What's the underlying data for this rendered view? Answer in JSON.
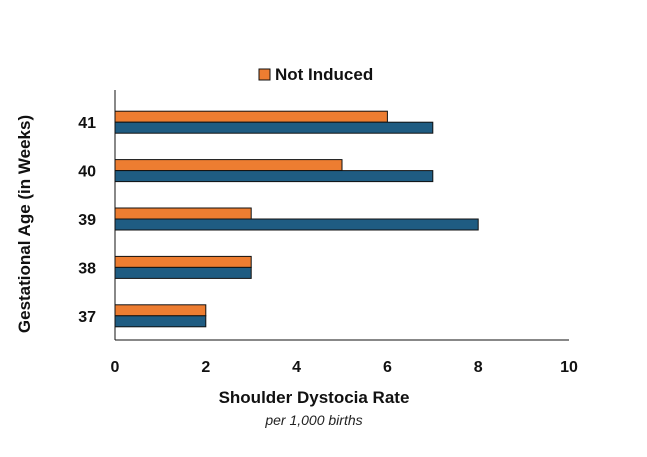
{
  "chart_data": {
    "type": "bar",
    "orientation": "horizontal",
    "categories": [
      "37",
      "38",
      "39",
      "40",
      "41"
    ],
    "series": [
      {
        "name": "Not Induced",
        "color": "#ED7D31",
        "values": [
          2,
          3,
          3,
          5,
          6
        ]
      },
      {
        "name": "",
        "color": "#1F5C82",
        "values": [
          2,
          3,
          8,
          7,
          7
        ]
      }
    ],
    "xlabel": "Shoulder Dystocia Rate",
    "xlabel_sub": "per 1,000 births",
    "ylabel": "Gestational Age (in Weeks)",
    "xlim": [
      0,
      10
    ],
    "x_ticks": [
      0,
      2,
      4,
      6,
      8,
      10
    ],
    "grid": false,
    "legend_position": "top"
  }
}
